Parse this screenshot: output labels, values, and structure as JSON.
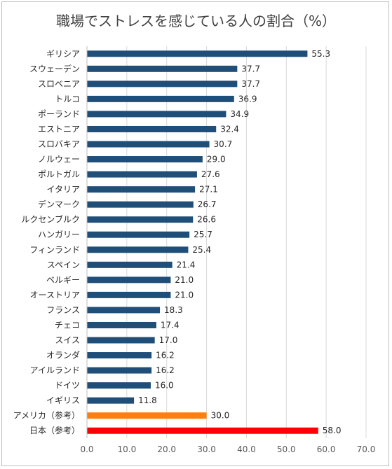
{
  "chart_data": {
    "type": "bar",
    "orientation": "horizontal",
    "title": "職場でストレスを感じている人の割合（%）",
    "xlabel": "",
    "ylabel": "",
    "xlim": [
      0,
      70
    ],
    "xticks": [
      "0.0",
      "10.0",
      "20.0",
      "30.0",
      "40.0",
      "50.0",
      "60.0",
      "70.0"
    ],
    "grid": true,
    "legend": "none",
    "categories": [
      "ギリシア",
      "スウェーデン",
      "スロベニア",
      "トルコ",
      "ポーランド",
      "エストニア",
      "スロバキア",
      "ノルウェー",
      "ポルトガル",
      "イタリア",
      "デンマーク",
      "ルクセンブルク",
      "ハンガリー",
      "フィンランド",
      "スペイン",
      "ベルギー",
      "オーストリア",
      "フランス",
      "チェコ",
      "スイス",
      "オランダ",
      "アイルランド",
      "ドイツ",
      "イギリス",
      "アメリカ（参考）",
      "日本（参考）"
    ],
    "values": [
      55.3,
      37.7,
      37.7,
      36.9,
      34.9,
      32.4,
      30.7,
      29.0,
      27.6,
      27.1,
      26.7,
      26.6,
      25.7,
      25.4,
      21.4,
      21.0,
      21.0,
      18.3,
      17.4,
      17.0,
      16.2,
      16.2,
      16.0,
      11.8,
      30.0,
      58.0
    ],
    "value_labels": [
      "55.3",
      "37.7",
      "37.7",
      "36.9",
      "34.9",
      "32.4",
      "30.7",
      "29.0",
      "27.6",
      "27.1",
      "26.7",
      "26.6",
      "25.7",
      "25.4",
      "21.4",
      "21.0",
      "21.0",
      "18.3",
      "17.4",
      "17.0",
      "16.2",
      "16.2",
      "16.0",
      "11.8",
      "30.0",
      "58.0"
    ],
    "colors": {
      "default": "#1f4e79",
      "アメリカ（参考）": "#ff7f0e",
      "日本（参考）": "#ff0000"
    }
  }
}
